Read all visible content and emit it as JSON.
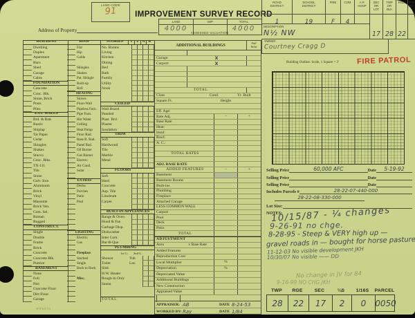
{
  "header": {
    "land_code_label": "LAND CODE",
    "land_code_value": "91",
    "title": "IMPROVEMENT SURVEY RECORD",
    "address_label": "Address of Property",
    "valuation": {
      "caption": "ASSESSED VALUATION",
      "cols": [
        "LAND",
        "IMP",
        "TOTAL"
      ],
      "land_value": "4000",
      "imp_value": "",
      "total_value": "4000"
    },
    "district": {
      "headers": [
        "ROAD\nDISTRICT",
        "SCHOOL\nDISTRICT",
        "FIRE",
        "COM",
        "A.P.\nHOSP",
        "SEC\nOR\nLOT",
        "TWP\nOR\nBLK",
        "RGE.",
        "TAX\nNO."
      ],
      "road": "1",
      "school": "19",
      "fire": "F",
      "com": "4",
      "description_label": "DESCRIPTION",
      "description_value": "N½ NW",
      "sec": "17",
      "twp": "28",
      "rge": "22",
      "owner_label": "OWNER",
      "owner_value": "Courtney  Cragg  D"
    }
  },
  "outline": {
    "caption": "Building Outline:   Scale, 1 Square = 2′",
    "stamp": "FIRE PATROL"
  },
  "sales": {
    "price_label": "Selling Price",
    "date_label": "Date",
    "rows": [
      {
        "price": "60,000 AFC",
        "date": "5-19-92"
      },
      {
        "price": "",
        "date": ""
      },
      {
        "price": "",
        "date": ""
      }
    ],
    "parcels_label": "Includes Parcels #",
    "parcel1": "28-22-07-440-000",
    "parcel2": "28-22-08-330-000",
    "lot_label": "Lot Size:",
    "notes_label": "NOTES:",
    "notes": [
      "10/15/87 - ¼ changes",
      "9-26-91  no chge.",
      "8-28-95 - Steep & VERY high up —",
      "gravel roads in — bought for horse pasture",
      "11-12-03  No visible development  JKH",
      "10/30/07  No visible  ——  DD"
    ],
    "faint_notes": [
      "No change in JV for 84",
      "9-16-99  NO CHG  JKH"
    ]
  },
  "parcel_table": {
    "headers": [
      "TWP",
      "RGE",
      "SEC",
      "¼S",
      "1/16S",
      "PARCEL"
    ],
    "values": [
      "28",
      "22",
      "17",
      "2",
      "0",
      "0050"
    ]
  },
  "footer": {
    "appraiser_label": "APPRAISER:",
    "appraiser": "AB",
    "date_label": "DATE",
    "appraiser_date": "8-24-53",
    "worked_label": "WORKED BY:",
    "worked_by": "Ray",
    "worked_date": "1/84",
    "form_code": "WF6970"
  },
  "mid": {
    "ab_header": "ADDITIONAL BUILDINGS",
    "full_value": "Full\nValue",
    "rows": [
      {
        "t": "ab",
        "l": "",
        "x": ""
      },
      {
        "t": "ab",
        "l": "Garage:",
        "x": "X"
      },
      {
        "t": "ab",
        "l": "Carport:",
        "x": "X"
      },
      {
        "t": "ab",
        "l": "",
        "x": ""
      },
      {
        "t": "ab",
        "l": "",
        "x": ""
      },
      {
        "t": "ab",
        "l": "",
        "x": ""
      },
      {
        "t": "ab",
        "l": "",
        "x": ""
      },
      {
        "t": "abt",
        "l": "TOTAL."
      },
      {
        "t": "kv3",
        "l": "Class",
        "l2": "Cond.",
        "l3": "Yr. Built"
      },
      {
        "t": "kv3",
        "l": "Square Ft.",
        "l2": "Height",
        "l3": ""
      },
      {
        "t": "plain",
        "l": ""
      },
      {
        "t": "plain",
        "l": "Eff. Age:"
      },
      {
        "t": "rate",
        "l": "Rate Adj.",
        "c1": "−",
        "c2": "+"
      },
      {
        "t": "rate",
        "l": "Base Rate"
      },
      {
        "t": "rate",
        "l": "Heat:"
      },
      {
        "t": "rate",
        "l": "Insul:"
      },
      {
        "t": "rate",
        "l": "Roof:"
      },
      {
        "t": "rate",
        "l": "A. C.:"
      },
      {
        "t": "rate",
        "l": ""
      },
      {
        "t": "ratec",
        "l": "TOTAL RATES"
      },
      {
        "t": "rate",
        "l": ""
      },
      {
        "t": "wide",
        "l": "ADJ. BASE RATE"
      },
      {
        "t": "ratec",
        "l": "ADDED FEATURES",
        "c1": "−",
        "c2": "+"
      },
      {
        "t": "rate",
        "l": "Basement",
        "sh": true
      },
      {
        "t": "rate",
        "l": "Basement Rooms"
      },
      {
        "t": "rate",
        "l": "Built-ins"
      },
      {
        "t": "rate",
        "l": "Plumbing"
      },
      {
        "t": "rate",
        "l": "Fireplace"
      },
      {
        "t": "rate",
        "l": "Attached Garage"
      },
      {
        "t": "rate",
        "l": "LESS COMMON WALL"
      },
      {
        "t": "rate",
        "l": "Carport"
      },
      {
        "t": "rate",
        "l": "Pool"
      },
      {
        "t": "rate",
        "l": "Deck"
      },
      {
        "t": "rate",
        "l": "Patio"
      },
      {
        "t": "ratec",
        "l": "TOTAL"
      },
      {
        "t": "band",
        "l": "ADJUSTMENT"
      },
      {
        "t": "adj",
        "l": "Area",
        "l2": "x Base Rate"
      },
      {
        "t": "adj",
        "l": "Added Features"
      },
      {
        "t": "adj",
        "l": "Reproduction Cost"
      },
      {
        "t": "adj",
        "l": "Local Multiplier",
        "c1": "%"
      },
      {
        "t": "adj",
        "l": "Depreciation",
        "c1": "%"
      },
      {
        "t": "adj",
        "l": "Depreciated Value"
      },
      {
        "t": "adj",
        "l": "Additional Buildings"
      },
      {
        "t": "adj",
        "l": "New Construction"
      },
      {
        "t": "adj",
        "l": "Appraised Value"
      },
      {
        "t": "fill",
        "l": ""
      }
    ]
  },
  "checklist": {
    "stories_cols": [
      "1",
      "2",
      "A",
      "B"
    ],
    "col1": [
      {
        "t": "h",
        "l": "BUILDING"
      },
      "Dwelling",
      "Duplex",
      "Apartment",
      "Barn",
      "Shed",
      "Garage",
      "Cabin",
      {
        "t": "h",
        "l": "FOUNDATION"
      },
      "Concrete",
      "Conc. Blk.",
      "Stone, Brick",
      "Posts",
      "Piles",
      {
        "t": "h",
        "l": "EXT. WALLS"
      },
      "Brd. & Bats",
      "Rustic",
      "Shiplap",
      "Tar Paper",
      "Cedar",
      "Shingles",
      "Shakes",
      "Stucco",
      "Conc. Blks.",
      "TX-111",
      "Tile",
      "Stone",
      "Galv. Iron",
      "Aluminum",
      "Brick",
      "Vinyl",
      "Masonite",
      "Brick Ven.",
      "Com. Sel.",
      "Roman",
      "Rugged",
      {
        "t": "h",
        "l": "CONSTRUCT."
      },
      "Single",
      "Double",
      "Frame",
      "Brick",
      "Concrete",
      "Concrete Blk.",
      "Pumice",
      {
        "t": "h",
        "l": "BASEMENT"
      },
      "None",
      "Full",
      "Part",
      "Concrete Floor",
      "Dirt Floor",
      "Garage"
    ],
    "col2": [
      {
        "t": "h",
        "l": "ROOF"
      },
      "Flat",
      "Hip",
      "Gable",
      null,
      "Shingles",
      "Shakes",
      "Pat. Shingle",
      "Built-up",
      "Roll",
      {
        "t": "h",
        "l": "HEATING"
      },
      "Stoves",
      "Floor-Wall",
      "Pipeless Furn.",
      "Pipe Furn.",
      "Hot Water",
      "Ceiling",
      "Heat Pump",
      "Floor Rad.",
      "Base B. Rad.",
      "Panel Rad.",
      "Oil Burner",
      "Gas Burner",
      "Electric",
      "Air Cond.",
      "Solar",
      null,
      {
        "t": "h",
        "l": "EXTRAS"
      },
      "Decks",
      "Porches",
      "Patio",
      "Pool",
      null,
      null,
      null,
      null,
      null,
      {
        "t": "h",
        "l": "LIGHTING"
      },
      "Electric",
      "Gas",
      null,
      {
        "t": "ib",
        "l": "Fireplace"
      },
      "Stacked",
      "Single",
      "Back to Back",
      null,
      {
        "t": "ib",
        "l": "Misc."
      },
      null,
      null,
      null,
      null
    ],
    "col3": [
      {
        "t": "s5",
        "l": "STORIES",
        "c1": "1",
        "c2": "2",
        "c3": "A",
        "c4": "B",
        "c": 0
      },
      "No. Rooms",
      "Living",
      "Kitchen",
      "Dining",
      "Bed",
      "Bath",
      "Family",
      "Utility",
      "Nook",
      null,
      null,
      {
        "t": "h",
        "l": "CEILED"
      },
      "Wall Board",
      "Paneled",
      "Plast. Brd.",
      "Plaster",
      "Insulation",
      {
        "t": "h",
        "l": "TRIM"
      },
      "Soft",
      "Hardwood",
      "Tile",
      "Marble",
      "Metal",
      null,
      {
        "t": "h",
        "l": "FLOORS"
      },
      "Soft",
      "Hard",
      "Concrete",
      "Asp. Tile",
      "Linoleum",
      "Carpet",
      null,
      {
        "t": "h",
        "l": "BUILT-IN APPLIANCES"
      },
      {
        "t": "ind",
        "l": "Range & Oven"
      },
      {
        "t": "ind",
        "l": "Hood & Fan"
      },
      {
        "t": "ind",
        "l": "Garbage Disp."
      },
      {
        "t": "ind",
        "l": "Dishwasher"
      },
      {
        "t": "ind",
        "l": "Inter Com."
      },
      {
        "t": "ind",
        "l": "Bar-B-Que"
      },
      {
        "t": "h",
        "l": "PLUMBING"
      },
      {
        "t": "sub",
        "l": "1st G.",
        "l2": "2nd G.",
        "c": 0
      },
      {
        "t": "p2",
        "l": "Shower",
        "l2": "Tub",
        "c": 2
      },
      {
        "t": "p2",
        "l": "Toilet",
        "l2": "Lav.",
        "c": 2
      },
      {
        "t": "p1",
        "l": "Sink",
        "c": 2
      },
      {
        "t": "p1",
        "l": "H.W. Heater",
        "c": 2
      },
      {
        "t": "p1",
        "l": "Rough-in Only",
        "c": 2
      },
      {
        "t": "p1",
        "l": "Sauna",
        "c": 2
      },
      {
        "t": "b",
        "c": 0
      },
      {
        "t": "b",
        "c": 0
      },
      {
        "t": "tc",
        "l": "TOTAL",
        "c": 0
      }
    ]
  }
}
